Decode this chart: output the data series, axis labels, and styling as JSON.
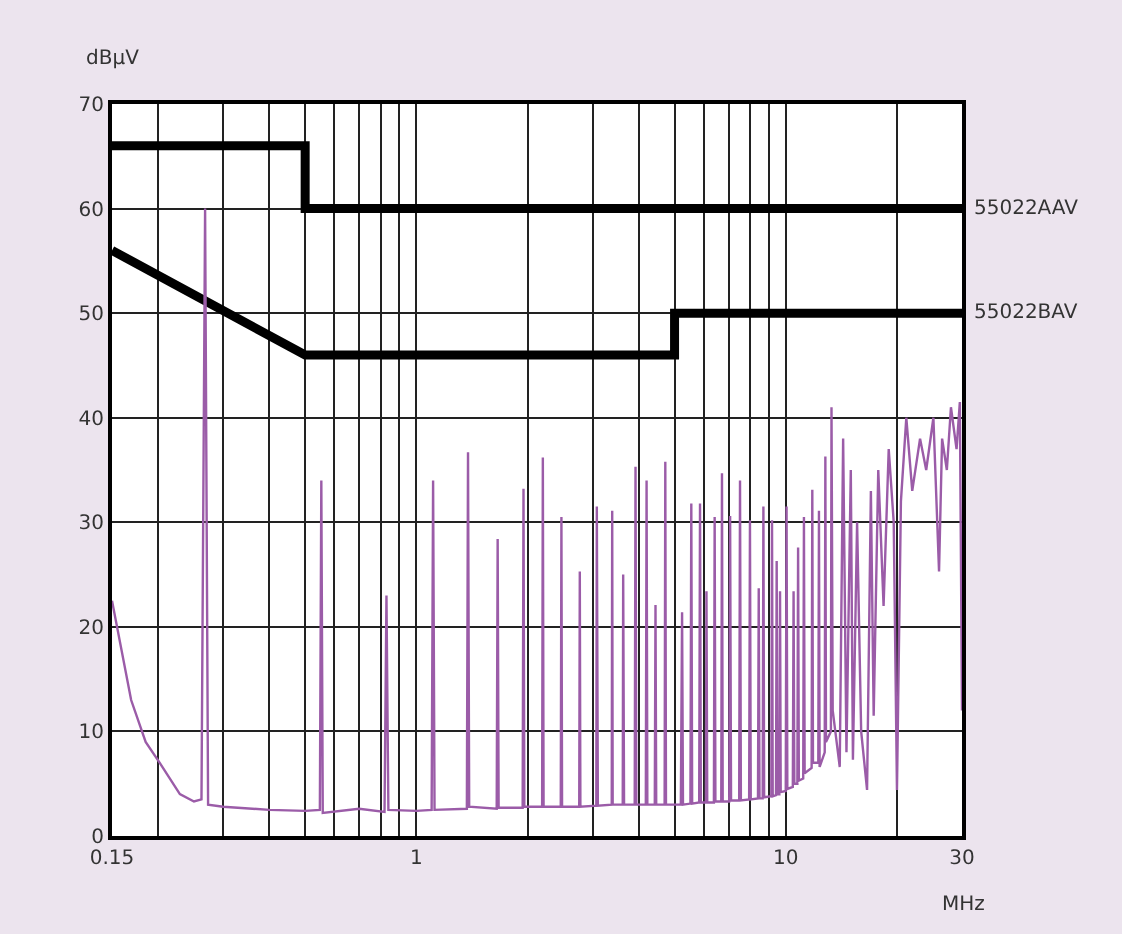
{
  "chart_data": {
    "type": "line",
    "xlabel": "MHz",
    "ylabel": "dBµV",
    "log": "x",
    "grid": true,
    "legend": false,
    "marker": "none",
    "line_style": "solid",
    "xlim": [
      0.15,
      30
    ],
    "ylim": [
      0,
      70
    ],
    "xticks": [
      0.15,
      {
        "value": 0.2,
        "label": null
      },
      {
        "value": 0.3,
        "label": null
      },
      {
        "value": 0.4,
        "label": null
      },
      {
        "value": 0.5,
        "label": null
      },
      {
        "value": 0.6,
        "label": null
      },
      {
        "value": 0.7,
        "label": null
      },
      {
        "value": 0.8,
        "label": null
      },
      {
        "value": 0.9,
        "label": null
      },
      1,
      {
        "value": 2,
        "label": null
      },
      {
        "value": 3,
        "label": null
      },
      {
        "value": 4,
        "label": null
      },
      {
        "value": 5,
        "label": null
      },
      {
        "value": 6,
        "label": null
      },
      {
        "value": 7,
        "label": null
      },
      {
        "value": 8,
        "label": null
      },
      {
        "value": 9,
        "label": null
      },
      10,
      {
        "value": 20,
        "label": null
      },
      30
    ],
    "yticks": [
      0,
      10,
      20,
      30,
      40,
      50,
      60,
      70
    ],
    "series": [
      {
        "name": "55022AAV",
        "color": "#000000",
        "x": [
          0.15,
          0.5,
          0.5,
          30
        ],
        "values": [
          66,
          66,
          60,
          60
        ]
      },
      {
        "name": "55022BAV",
        "color": "#000000",
        "x": [
          0.15,
          0.5,
          5,
          5,
          30
        ],
        "values": [
          56,
          46,
          46,
          50,
          50
        ]
      },
      {
        "color": "#9b5ca8",
        "x": [
          0.15,
          0.169,
          0.185,
          0.202,
          0.229,
          0.25,
          0.262,
          0.268,
          0.273,
          0.3,
          0.4,
          0.5,
          0.548,
          0.553,
          0.558,
          0.7,
          0.82,
          0.83,
          0.84,
          1.0,
          1.1,
          1.11,
          1.12,
          1.37,
          1.38,
          1.39,
          1.65,
          1.66,
          1.67,
          1.94,
          1.95,
          1.96,
          2.19,
          2.2,
          2.21,
          2.46,
          2.47,
          2.48,
          2.76,
          2.77,
          2.78,
          3.07,
          3.08,
          3.1,
          3.38,
          3.39,
          3.4,
          3.62,
          3.63,
          3.65,
          3.9,
          3.92,
          3.94,
          4.18,
          4.2,
          4.22,
          4.42,
          4.44,
          4.46,
          4.7,
          4.72,
          4.74,
          5.2,
          5.24,
          5.27,
          5.52,
          5.55,
          5.58,
          5.83,
          5.86,
          5.89,
          6.08,
          6.1,
          6.13,
          6.39,
          6.42,
          6.45,
          6.69,
          6.72,
          6.75,
          7.03,
          7.07,
          7.11,
          7.48,
          7.52,
          7.56,
          7.96,
          8.0,
          8.04,
          8.41,
          8.45,
          8.49,
          8.66,
          8.7,
          8.74,
          9.14,
          9.18,
          9.22,
          9.41,
          9.45,
          9.49,
          9.61,
          9.65,
          9.69,
          10.0,
          10.05,
          10.1,
          10.45,
          10.5,
          10.55,
          10.75,
          10.8,
          10.85,
          11.15,
          11.2,
          11.25,
          11.75,
          11.8,
          11.85,
          12.25,
          12.3,
          12.35,
          12.75,
          12.8,
          12.85,
          13.25,
          13.3,
          13.4,
          14.0,
          14.3,
          14.6,
          15.0,
          15.2,
          15.6,
          16.0,
          16.6,
          17.0,
          17.3,
          17.8,
          18.4,
          19.0,
          19.6,
          20.0,
          20.5,
          21.2,
          22,
          23.1,
          24,
          25.1,
          26,
          26.5,
          27.3,
          28,
          29,
          29.6,
          30
        ],
        "values": [
          22.5,
          13,
          9,
          7,
          4,
          3.3,
          3.5,
          60,
          3,
          2.8,
          2.5,
          2.4,
          2.5,
          34,
          2.2,
          2.6,
          2.3,
          23,
          2.5,
          2.4,
          2.5,
          34,
          2.5,
          2.6,
          36.7,
          2.8,
          2.6,
          28.4,
          2.7,
          2.7,
          33.2,
          2.8,
          2.8,
          36.2,
          2.8,
          2.8,
          30.5,
          2.8,
          2.8,
          25.3,
          2.8,
          2.9,
          31.5,
          2.9,
          3,
          31.1,
          3,
          3,
          25,
          3,
          3,
          35.3,
          3,
          3,
          34,
          3,
          3,
          22.1,
          3,
          3,
          35.8,
          3,
          3,
          21.4,
          3,
          3.1,
          31.8,
          3.1,
          3.2,
          31.8,
          3.2,
          3.2,
          23.4,
          3.2,
          3.2,
          30.5,
          3.3,
          3.3,
          34.7,
          3.3,
          3.3,
          30.6,
          3.4,
          3.4,
          34,
          3.4,
          3.5,
          30.2,
          3.5,
          3.6,
          23.7,
          3.6,
          3.6,
          31.5,
          3.7,
          3.8,
          30.2,
          3.8,
          3.9,
          26.3,
          4,
          4,
          23.4,
          4.2,
          4.3,
          31.5,
          4.5,
          4.7,
          23.4,
          5,
          5,
          27.6,
          5.3,
          5.5,
          30.5,
          6,
          6.5,
          33.1,
          7,
          7,
          31.1,
          6.6,
          8,
          36.3,
          9,
          10,
          41,
          12,
          6.6,
          38,
          8,
          35,
          7.3,
          30,
          10,
          4.4,
          33,
          11.5,
          35,
          22,
          37,
          30,
          4.4,
          32,
          40,
          33,
          38,
          35,
          40,
          25.3,
          38,
          35,
          41,
          37,
          41.5,
          12
        ]
      }
    ]
  }
}
